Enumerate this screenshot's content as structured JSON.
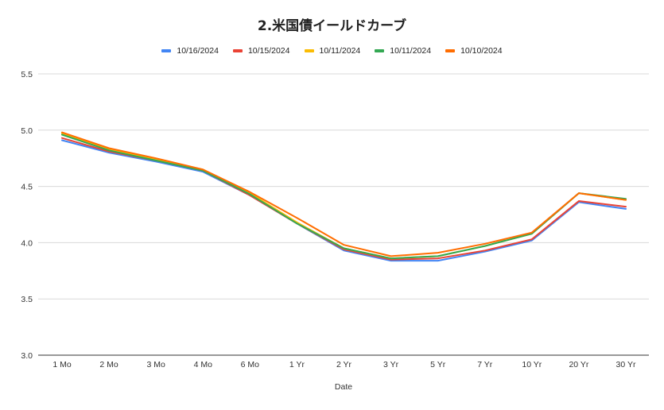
{
  "chart_data": {
    "type": "line",
    "title": "2.米国債イールドカーブ",
    "xlabel": "Date",
    "ylabel": "",
    "ylim": [
      3.0,
      5.5
    ],
    "yticks": [
      "5.5",
      "5.0",
      "4.5",
      "4.0",
      "3.5",
      "3.0"
    ],
    "grid": true,
    "legend_position": "top",
    "categories": [
      "1 Mo",
      "2 Mo",
      "3 Mo",
      "4 Mo",
      "6 Mo",
      "1 Yr",
      "2 Yr",
      "3 Yr",
      "5 Yr",
      "7 Yr",
      "10 Yr",
      "20 Yr",
      "30 Yr"
    ],
    "series": [
      {
        "name": "10/16/2024",
        "color": "#4285f4",
        "values": [
          4.91,
          4.8,
          4.72,
          4.63,
          4.42,
          4.17,
          3.93,
          3.84,
          3.84,
          3.92,
          4.02,
          4.36,
          4.3
        ]
      },
      {
        "name": "10/15/2024",
        "color": "#ea4335",
        "values": [
          4.93,
          4.81,
          4.73,
          4.64,
          4.42,
          4.17,
          3.94,
          3.85,
          3.86,
          3.93,
          4.03,
          4.37,
          4.32
        ]
      },
      {
        "name": "10/11/2024",
        "color": "#fbbc04",
        "values": [
          4.97,
          4.83,
          4.74,
          4.65,
          4.44,
          4.18,
          3.95,
          3.86,
          3.88,
          3.97,
          4.08,
          4.44,
          4.38
        ]
      },
      {
        "name": "10/11/2024",
        "color": "#34a853",
        "values": [
          4.96,
          4.82,
          4.73,
          4.64,
          4.43,
          4.17,
          3.95,
          3.86,
          3.88,
          3.97,
          4.08,
          4.44,
          4.39
        ]
      },
      {
        "name": "10/10/2024",
        "color": "#ff6d01",
        "values": [
          4.98,
          4.84,
          4.75,
          4.65,
          4.45,
          4.22,
          3.98,
          3.88,
          3.91,
          3.99,
          4.09,
          4.44,
          4.38
        ]
      }
    ]
  }
}
